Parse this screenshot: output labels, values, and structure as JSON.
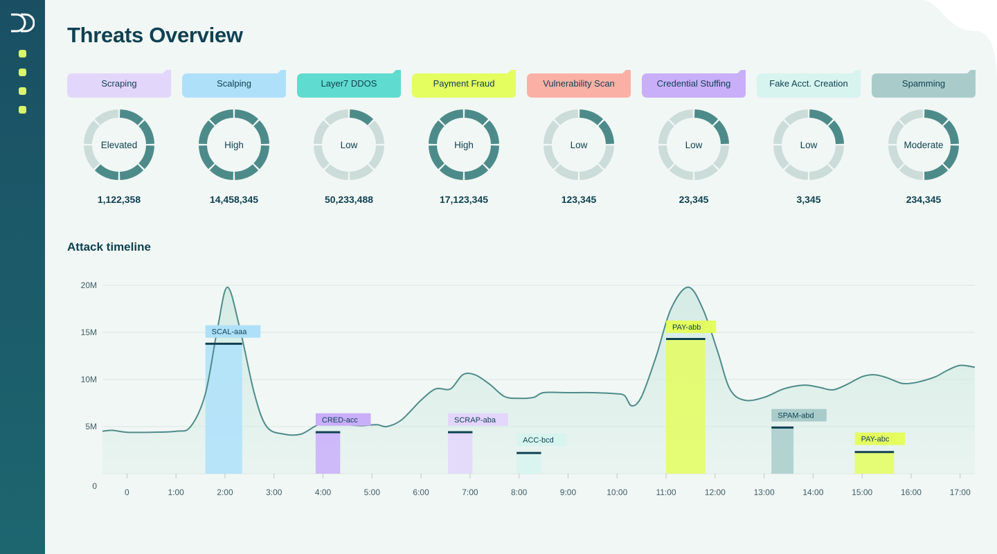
{
  "page": {
    "title": "Threats Overview"
  },
  "colors": {
    "sidebar": "#1a4f63",
    "nav_dot": "#d9f56a",
    "donut_active": "#4d8b8a",
    "donut_inactive": "#ccdcd8",
    "line": "#4d8b8a",
    "area": "#d3ebe4"
  },
  "threats": [
    {
      "label": "Scraping",
      "level": "Elevated",
      "count": "1,122,358",
      "color": "#e3d6fb",
      "active_segments": 5
    },
    {
      "label": "Scalping",
      "level": "High",
      "count": "14,458,345",
      "color": "#aee0fa",
      "active_segments": 8
    },
    {
      "label": "Layer7 DDOS",
      "level": "Low",
      "count": "50,233,488",
      "color": "#5fdccf",
      "active_segments": 1
    },
    {
      "label": "Payment Fraud",
      "level": "High",
      "count": "17,123,345",
      "color": "#e4fd5f",
      "active_segments": 8
    },
    {
      "label": "Vulnerability Scan",
      "level": "Low",
      "count": "123,345",
      "color": "#fbb0a6",
      "active_segments": 2
    },
    {
      "label": "Credential Stuffing",
      "level": "Low",
      "count": "23,345",
      "color": "#c9aefa",
      "active_segments": 2
    },
    {
      "label": "Fake Acct. Creation",
      "level": "Low",
      "count": "3,345",
      "color": "#d7f4ef",
      "active_segments": 2
    },
    {
      "label": "Spamming",
      "level": "Moderate",
      "count": "234,345",
      "color": "#a9cccb",
      "active_segments": 4
    }
  ],
  "timeline": {
    "title": "Attack timeline",
    "chart_data": {
      "type": "area",
      "xlabel": "",
      "ylabel": "",
      "x_ticks": [
        "0",
        "1:00",
        "2:00",
        "3:00",
        "4:00",
        "5:00",
        "6:00",
        "7:00",
        "8:00",
        "9:00",
        "10:00",
        "11:00",
        "12:00",
        "13:00",
        "14:00",
        "15:00",
        "16:00",
        "17:00"
      ],
      "y_ticks": [
        "0",
        "5M",
        "10M",
        "15M",
        "20M"
      ],
      "ylim": [
        0,
        20
      ],
      "xlim": [
        -0.5,
        17.3
      ],
      "grid": true,
      "series": [
        {
          "values": [
            [
              -0.5,
              4.5
            ],
            [
              -0.3,
              4.6
            ],
            [
              0,
              4.4
            ],
            [
              0.5,
              4.4
            ],
            [
              1,
              4.5
            ],
            [
              1.3,
              5.0
            ],
            [
              1.6,
              8.5
            ],
            [
              1.85,
              15.5
            ],
            [
              2.05,
              19.8
            ],
            [
              2.3,
              15.5
            ],
            [
              2.6,
              8.5
            ],
            [
              2.85,
              5.0
            ],
            [
              3.2,
              4.2
            ],
            [
              3.55,
              4.2
            ],
            [
              3.9,
              5.2
            ],
            [
              4.2,
              5.4
            ],
            [
              4.5,
              5.2
            ],
            [
              4.8,
              5.1
            ],
            [
              5.1,
              5.2
            ],
            [
              5.3,
              5.0
            ],
            [
              5.6,
              5.7
            ],
            [
              6,
              7.8
            ],
            [
              6.3,
              9.0
            ],
            [
              6.6,
              9.0
            ],
            [
              6.85,
              10.5
            ],
            [
              7.1,
              10.5
            ],
            [
              7.4,
              9.5
            ],
            [
              7.7,
              8.2
            ],
            [
              8.0,
              8.0
            ],
            [
              8.3,
              8.1
            ],
            [
              8.5,
              8.6
            ],
            [
              9.0,
              8.6
            ],
            [
              9.5,
              8.6
            ],
            [
              9.95,
              8.5
            ],
            [
              10.15,
              8.3
            ],
            [
              10.3,
              7.2
            ],
            [
              10.5,
              8.2
            ],
            [
              10.8,
              12.5
            ],
            [
              11.1,
              17.5
            ],
            [
              11.45,
              19.8
            ],
            [
              11.75,
              17.5
            ],
            [
              12.05,
              13.0
            ],
            [
              12.3,
              9.0
            ],
            [
              12.6,
              7.8
            ],
            [
              13,
              8.1
            ],
            [
              13.4,
              9.0
            ],
            [
              13.8,
              9.4
            ],
            [
              14.1,
              9.2
            ],
            [
              14.4,
              8.9
            ],
            [
              14.7,
              9.5
            ],
            [
              15,
              10.3
            ],
            [
              15.25,
              10.5
            ],
            [
              15.5,
              10.2
            ],
            [
              15.8,
              9.6
            ],
            [
              16.0,
              9.6
            ],
            [
              16.2,
              9.8
            ],
            [
              16.5,
              10.3
            ],
            [
              16.75,
              11.0
            ],
            [
              17,
              11.5
            ],
            [
              17.3,
              11.3
            ]
          ]
        }
      ],
      "attacks": [
        {
          "label": "SCAL-aaa",
          "x0": 1.6,
          "x1": 2.35,
          "value": 13.8,
          "label_y": 15.1,
          "color": "#aee0fa"
        },
        {
          "label": "CRED-acc",
          "x0": 3.85,
          "x1": 4.35,
          "value": 4.4,
          "label_y": 5.75,
          "color": "#c9aefa"
        },
        {
          "label": "SCRAP-aba",
          "x0": 6.55,
          "x1": 7.05,
          "value": 4.4,
          "label_y": 5.75,
          "color": "#e3d6fb"
        },
        {
          "label": "ACC-bcd",
          "x0": 7.95,
          "x1": 8.45,
          "value": 2.2,
          "label_y": 3.6,
          "color": "#d7f4ef"
        },
        {
          "label": "PAY-abb",
          "x0": 11.0,
          "x1": 11.8,
          "value": 14.3,
          "label_y": 15.6,
          "color": "#e4fd5f"
        },
        {
          "label": "SPAM-abd",
          "x0": 13.15,
          "x1": 13.6,
          "value": 4.9,
          "label_y": 6.2,
          "color": "#a9cccb"
        },
        {
          "label": "PAY-abc",
          "x0": 14.85,
          "x1": 15.65,
          "value": 2.3,
          "label_y": 3.7,
          "color": "#e4fd5f"
        }
      ]
    }
  }
}
